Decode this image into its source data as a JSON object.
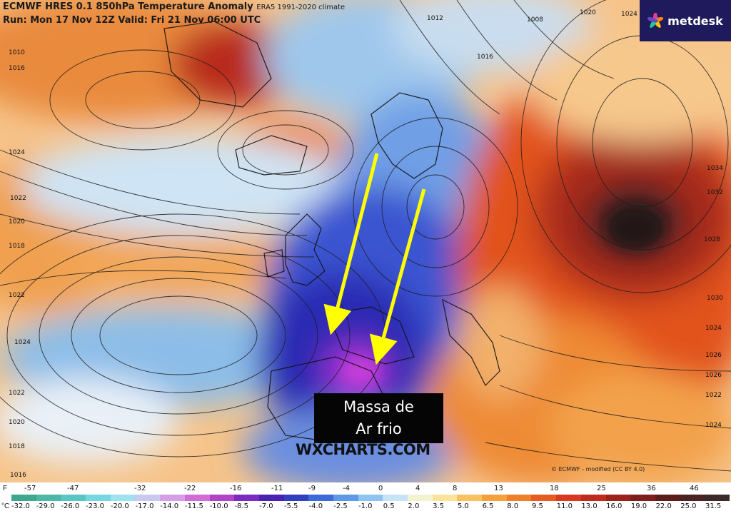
{
  "header": {
    "line1": "ECMWF HRES 0.1 850hPa Temperature Anomaly",
    "line1_small": "ERA5 1991-2020 climate",
    "line2": "Run: Mon 17 Nov 12Z Valid: Fri 21 Nov 06:00 UTC"
  },
  "logo": {
    "text": "metdesk",
    "bg": "#1f1a5c"
  },
  "annotation": {
    "line1": "Massa de",
    "line2": "Ar frio"
  },
  "watermark": "WXCHARTS.COM",
  "credit": "© ECMWF - modified (CC BY 4.0)",
  "arrow_color": "#ffff00",
  "isobars": {
    "west": [
      "1010",
      "1016",
      "1024",
      "1022",
      "1020",
      "1018",
      "1022",
      "1024",
      "1022",
      "1020",
      "1018",
      "1016"
    ],
    "north": [
      "1012",
      "1008",
      "1016",
      "1020",
      "1024"
    ],
    "east": [
      "1034",
      "1032",
      "1028",
      "1030",
      "1024",
      "1026",
      "1026",
      "1022",
      "1024"
    ]
  },
  "legend": {
    "f_unit": "F",
    "f_labels": [
      "-57",
      "-47",
      "-32",
      "-22",
      "-16",
      "-11",
      "-9",
      "-4",
      "0",
      "4",
      "8",
      "13",
      "18",
      "25",
      "36",
      "46"
    ],
    "c_unit": "°C",
    "c_labels": [
      "-32.0",
      "-29.0",
      "-26.0",
      "-23.0",
      "-20.0",
      "-17.0",
      "-14.0",
      "-11.5",
      "-10.0",
      "-8.5",
      "-7.0",
      "-5.5",
      "-4.0",
      "-2.5",
      "-1.0",
      "0.5",
      "2.0",
      "3.5",
      "5.0",
      "6.5",
      "8.0",
      "9.5",
      "11.0",
      "13.0",
      "16.0",
      "19.0",
      "22.0",
      "25.0",
      "31.5"
    ],
    "colors": [
      "#3ea88e",
      "#4bb8a6",
      "#5ac6c3",
      "#77d7e0",
      "#9ee2ee",
      "#c8c8f0",
      "#d79ee8",
      "#d36bd8",
      "#b242c8",
      "#7b2bc0",
      "#4a22b0",
      "#2f3fc0",
      "#3d6ad6",
      "#5e98e8",
      "#8fc3f2",
      "#c6e3f7",
      "#f3f3d0",
      "#fbe49a",
      "#f8c25e",
      "#f5a03c",
      "#f07f2a",
      "#e65b22",
      "#d73a1e",
      "#bf2a1e",
      "#9e221c",
      "#7e1f1f",
      "#5e1d1d",
      "#4a2424",
      "#3a2a2a"
    ]
  }
}
